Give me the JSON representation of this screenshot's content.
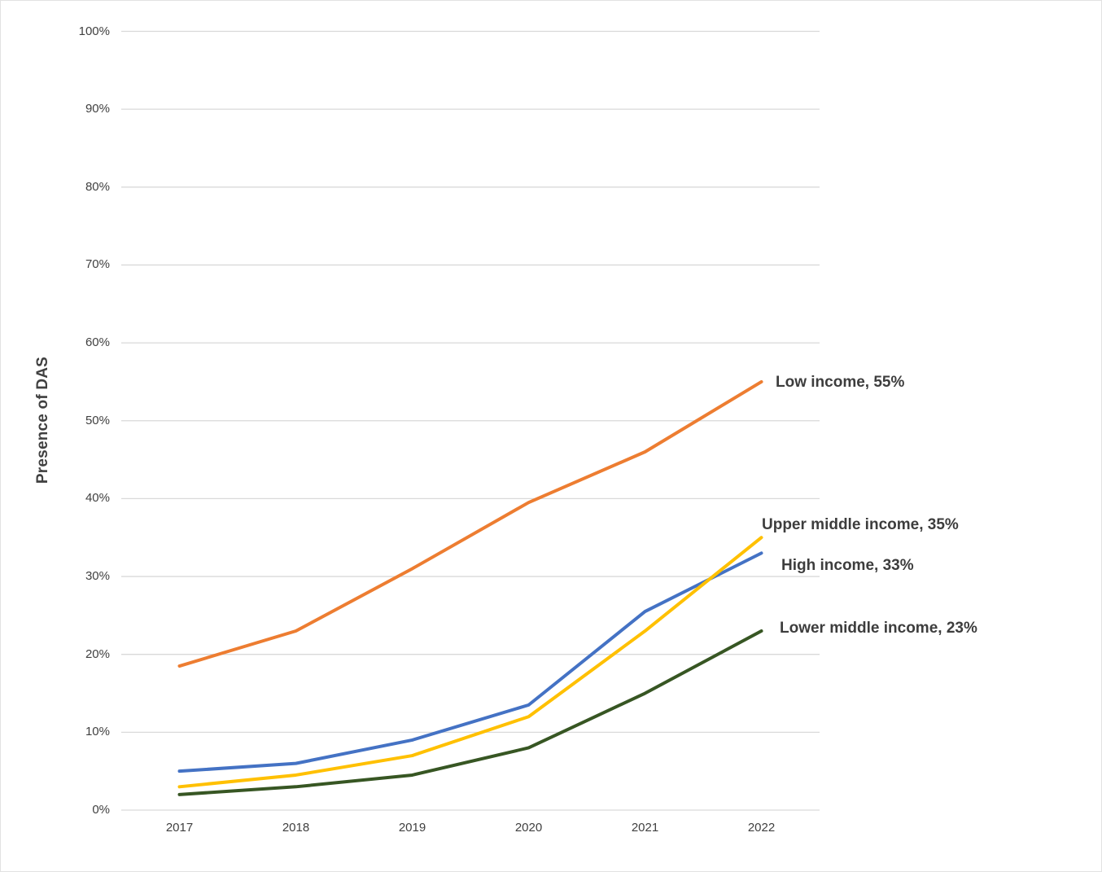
{
  "chart_data": {
    "type": "line",
    "title": "",
    "xlabel": "",
    "ylabel": "Presence of DAS",
    "ylim": [
      0,
      100
    ],
    "grid": true,
    "grid_color": "#d9d9d9",
    "legend_position": "end-of-line-labels",
    "x": [
      "2017",
      "2018",
      "2019",
      "2020",
      "2021",
      "2022"
    ],
    "yticks": [
      "0%",
      "10%",
      "20%",
      "30%",
      "40%",
      "50%",
      "60%",
      "70%",
      "80%",
      "90%",
      "100%"
    ],
    "series": [
      {
        "name": "Low income",
        "color": "#ED7D31",
        "values": [
          18.5,
          23,
          31,
          39.5,
          46,
          55
        ],
        "end_label": "Low income, 55%"
      },
      {
        "name": "High income",
        "color": "#4472C4",
        "values": [
          5,
          6,
          9,
          13.5,
          25.5,
          33
        ],
        "end_label": "High income, 33%"
      },
      {
        "name": "Upper middle income",
        "color": "#FFC000",
        "values": [
          3,
          4.5,
          7,
          12,
          23,
          35
        ],
        "end_label": "Upper middle income, 35%"
      },
      {
        "name": "Lower middle income",
        "color": "#375623",
        "values": [
          2,
          3,
          4.5,
          8,
          15,
          23
        ],
        "end_label": "Lower middle income, 23%"
      }
    ]
  }
}
